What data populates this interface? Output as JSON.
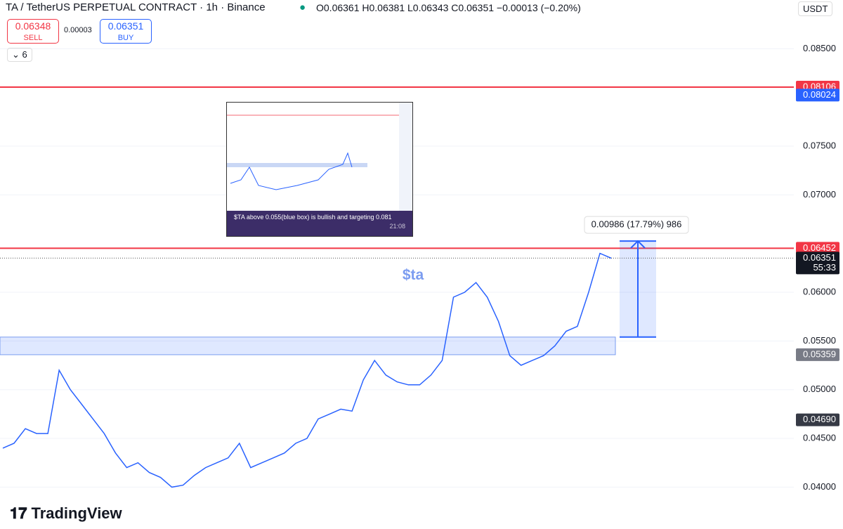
{
  "header": {
    "symbol": "TA / TetherUS PERPETUAL CONTRACT · 1h · Binance",
    "open": "O0.06361",
    "high": "H0.06381",
    "low": "L0.06343",
    "close": "C0.06351",
    "change": "−0.00013 (−0.20%)",
    "currency": "USDT",
    "sell_price": "0.06348",
    "sell": "SELL",
    "spread": "0.00003",
    "buy_price": "0.06351",
    "buy": "BUY",
    "indicators": "6"
  },
  "chart_data": {
    "type": "line",
    "annotation": "$ta",
    "measure_label": "0.00986 (17.79%) 986",
    "logo": "TradingView",
    "inset_caption": "$TA above 0.055(blue box) is bullish and targeting 0.081",
    "inset_time": "21:08",
    "series": [
      {
        "name": "TA/USDT",
        "color": "#2962ff",
        "values": [
          0.044,
          0.0445,
          0.046,
          0.0455,
          0.0455,
          0.052,
          0.05,
          0.0485,
          0.047,
          0.0455,
          0.0435,
          0.042,
          0.0425,
          0.0415,
          0.041,
          0.04,
          0.0402,
          0.0412,
          0.042,
          0.0425,
          0.043,
          0.0445,
          0.042,
          0.0425,
          0.043,
          0.0435,
          0.0445,
          0.045,
          0.047,
          0.0475,
          0.048,
          0.0478,
          0.051,
          0.053,
          0.0515,
          0.0508,
          0.0505,
          0.0505,
          0.0515,
          0.053,
          0.0595,
          0.06,
          0.061,
          0.0595,
          0.057,
          0.0535,
          0.0525,
          0.053,
          0.0535,
          0.0545,
          0.056,
          0.0565,
          0.06,
          0.064,
          0.0635
        ]
      }
    ],
    "ylim": [
      0.0357,
      0.09
    ],
    "yticks": [
      {
        "value": 0.085,
        "label": "0.08500"
      },
      {
        "value": 0.075,
        "label": "0.07500"
      },
      {
        "value": 0.07,
        "label": "0.07000"
      },
      {
        "value": 0.06,
        "label": "0.06000"
      },
      {
        "value": 0.055,
        "label": "0.05500"
      },
      {
        "value": 0.05,
        "label": "0.05000"
      },
      {
        "value": 0.045,
        "label": "0.04500"
      },
      {
        "value": 0.04,
        "label": "0.04000"
      }
    ],
    "price_lines": [
      {
        "value": 0.08106,
        "label": "0.08106",
        "color": "#f23645"
      },
      {
        "value": 0.06452,
        "label": "0.06452",
        "color": "#f23645"
      }
    ],
    "badges": [
      {
        "value": 0.08024,
        "label": "0.08024",
        "color": "#2962ff"
      },
      {
        "value": 0.06351,
        "label": "0.06351",
        "color": "#131722",
        "sub": "55:33"
      },
      {
        "value": 0.05359,
        "label": "0.05359",
        "color": "#787b86"
      },
      {
        "value": 0.0469,
        "label": "0.04690",
        "color": "#363a45"
      }
    ],
    "zone": [
      0.05359,
      0.0554
    ],
    "measure": [
      0.0554,
      0.06526
    ]
  }
}
